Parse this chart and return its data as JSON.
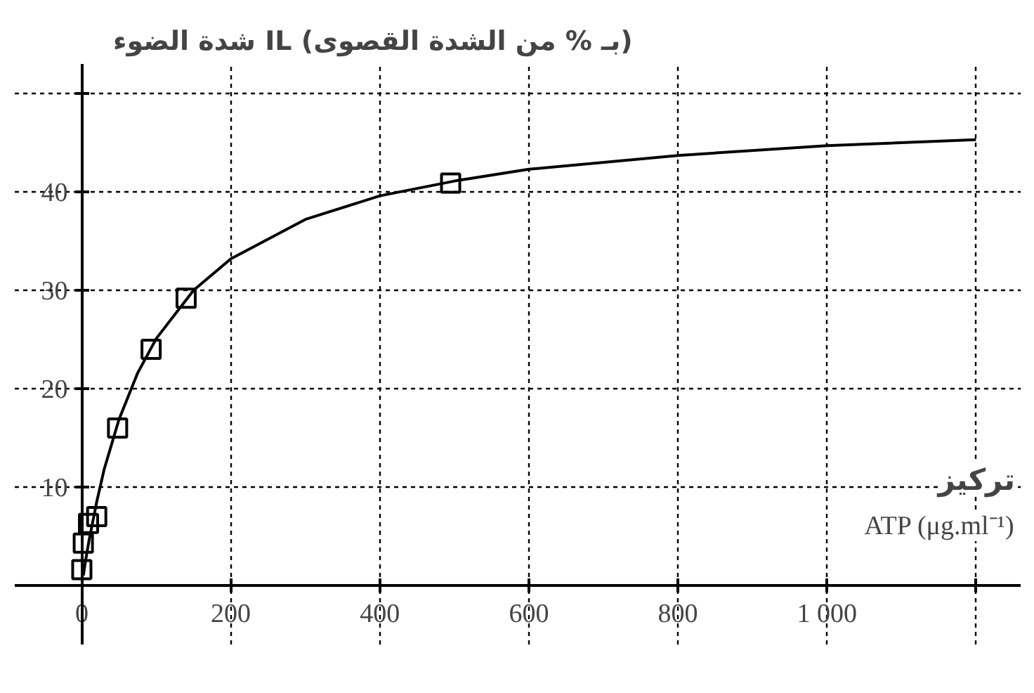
{
  "chart_data": {
    "type": "scatter",
    "ylabel": "شدة الضوء IL (بـ % من الشدة القصوى)",
    "xlabel": "تركيز\nATP (μg.ml⁻¹)",
    "series": [
      {
        "color": "#000000",
        "marker": "square",
        "x": [
          0,
          2,
          9,
          20,
          48,
          93,
          140,
          495
        ],
        "values": [
          1.6,
          4.3,
          6.3,
          7.0,
          16.0,
          24.0,
          29.2,
          40.9
        ]
      },
      {
        "type": "line",
        "color": "#000000",
        "marker": "none",
        "line_style": "solid",
        "x": [
          2,
          5,
          10,
          20,
          30,
          50,
          75,
          100,
          150,
          200,
          300,
          400,
          500,
          600,
          800,
          1000,
          1200
        ],
        "values": [
          1.0,
          2.5,
          4.7,
          8.5,
          11.8,
          16.9,
          21.6,
          25.1,
          30.0,
          33.2,
          37.2,
          39.6,
          41.1,
          42.3,
          43.7,
          44.7,
          45.3
        ]
      }
    ],
    "xlim": [
      -90,
      1260
    ],
    "ylim": [
      -6,
      53
    ],
    "xticks": [
      0,
      200,
      400,
      600,
      800,
      {
        "value": 1000,
        "label": "1 000"
      },
      {
        "value": 1200,
        "label": null
      }
    ],
    "yticks": [
      10,
      20,
      30,
      40,
      {
        "value": 50,
        "label": null
      }
    ],
    "grid": true
  }
}
